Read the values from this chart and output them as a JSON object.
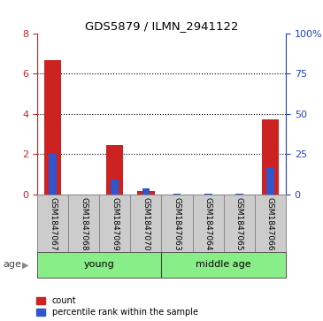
{
  "title": "GDS5879 / ILMN_2941122",
  "samples": [
    "GSM1847067",
    "GSM1847068",
    "GSM1847069",
    "GSM1847070",
    "GSM1847063",
    "GSM1847064",
    "GSM1847065",
    "GSM1847066"
  ],
  "count_values": [
    6.7,
    0.0,
    2.45,
    0.15,
    0.0,
    0.0,
    0.0,
    3.75
  ],
  "percentile_values": [
    25.0,
    0.0,
    9.0,
    3.5,
    0.5,
    0.5,
    0.5,
    17.0
  ],
  "left_ylim": [
    0,
    8
  ],
  "right_ylim": [
    0,
    100
  ],
  "left_yticks": [
    0,
    2,
    4,
    6,
    8
  ],
  "right_yticks": [
    0,
    25,
    50,
    75,
    100
  ],
  "right_yticklabels": [
    "0",
    "25",
    "50",
    "75",
    "100%"
  ],
  "bar_color_red": "#cc2222",
  "bar_color_blue": "#3355cc",
  "bar_width": 0.55,
  "blue_bar_width": 0.25,
  "group_labels": [
    "young",
    "middle age"
  ],
  "group_color": "#88ee88",
  "age_label": "age",
  "left_tick_color": "#cc2222",
  "right_tick_color": "#2244cc",
  "grid_color": "#000000",
  "label_bg_color": "#cccccc",
  "legend_red": "count",
  "legend_blue": "percentile rank within the sample"
}
